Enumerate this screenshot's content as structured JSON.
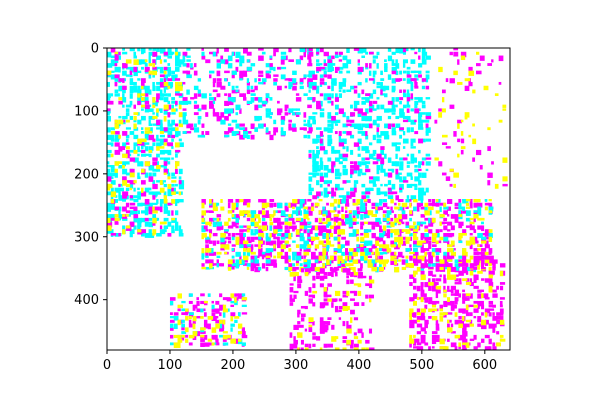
{
  "chart_data": {
    "type": "heatmap",
    "title": "",
    "xlabel": "",
    "ylabel": "",
    "xlim": [
      0,
      640
    ],
    "ylim": [
      480,
      0
    ],
    "y_axis_inverted": true,
    "x_ticks": [
      0,
      100,
      200,
      300,
      400,
      500,
      600
    ],
    "y_ticks": [
      0,
      100,
      200,
      300,
      400
    ],
    "grid": false,
    "legend": "none",
    "image_palette": [
      "#ffffff",
      "#00ffff",
      "#ff00ff",
      "#ffff00"
    ],
    "density_regions": [
      {
        "x": [
          0,
          120
        ],
        "y": [
          0,
          300
        ],
        "color": "#00ffff",
        "density": 0.45
      },
      {
        "x": [
          0,
          120
        ],
        "y": [
          0,
          300
        ],
        "color": "#ff00ff",
        "density": 0.12
      },
      {
        "x": [
          0,
          120
        ],
        "y": [
          0,
          300
        ],
        "color": "#ffff00",
        "density": 0.1
      },
      {
        "x": [
          120,
          320
        ],
        "y": [
          0,
          140
        ],
        "color": "#ff00ff",
        "density": 0.2
      },
      {
        "x": [
          120,
          320
        ],
        "y": [
          0,
          140
        ],
        "color": "#00ffff",
        "density": 0.15
      },
      {
        "x": [
          320,
          510
        ],
        "y": [
          0,
          240
        ],
        "color": "#00ffff",
        "density": 0.35
      },
      {
        "x": [
          320,
          510
        ],
        "y": [
          0,
          240
        ],
        "color": "#ff00ff",
        "density": 0.1
      },
      {
        "x": [
          150,
          610
        ],
        "y": [
          240,
          350
        ],
        "color": "#ff00ff",
        "density": 0.4
      },
      {
        "x": [
          150,
          610
        ],
        "y": [
          240,
          350
        ],
        "color": "#00ffff",
        "density": 0.18
      },
      {
        "x": [
          150,
          610
        ],
        "y": [
          240,
          350
        ],
        "color": "#ffff00",
        "density": 0.18
      },
      {
        "x": [
          290,
          420
        ],
        "y": [
          350,
          480
        ],
        "color": "#ff00ff",
        "density": 0.28
      },
      {
        "x": [
          290,
          420
        ],
        "y": [
          350,
          480
        ],
        "color": "#ffff00",
        "density": 0.06
      },
      {
        "x": [
          480,
          630
        ],
        "y": [
          330,
          480
        ],
        "color": "#ff00ff",
        "density": 0.4
      },
      {
        "x": [
          480,
          630
        ],
        "y": [
          330,
          480
        ],
        "color": "#ffff00",
        "density": 0.1
      },
      {
        "x": [
          100,
          220
        ],
        "y": [
          390,
          470
        ],
        "color": "#ff00ff",
        "density": 0.3
      },
      {
        "x": [
          100,
          220
        ],
        "y": [
          390,
          470
        ],
        "color": "#00ffff",
        "density": 0.15
      },
      {
        "x": [
          100,
          220
        ],
        "y": [
          390,
          470
        ],
        "color": "#ffff00",
        "density": 0.15
      },
      {
        "x": [
          520,
          630
        ],
        "y": [
          0,
          220
        ],
        "color": "#ff00ff",
        "density": 0.05
      },
      {
        "x": [
          520,
          630
        ],
        "y": [
          0,
          220
        ],
        "color": "#ffff00",
        "density": 0.05
      }
    ]
  }
}
